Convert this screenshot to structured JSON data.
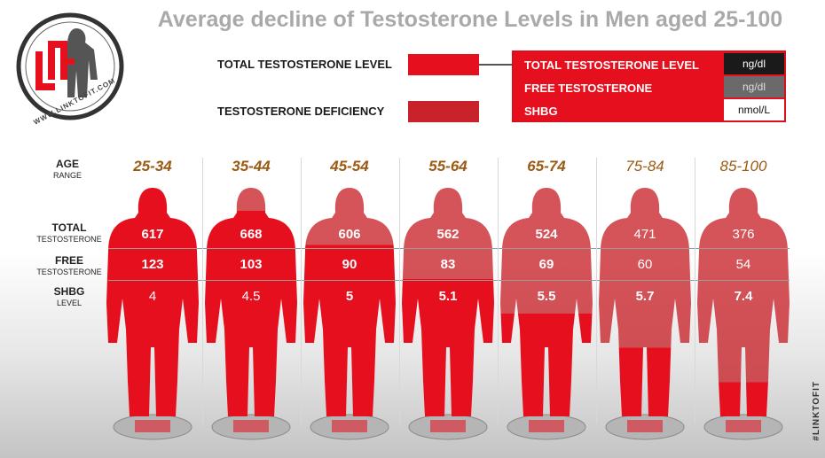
{
  "logo": {
    "text": "WWW.LINKTOFIT.COM"
  },
  "watermark": "#LINKTOFIT",
  "legend": {
    "total_label": "TOTAL TESTOSTERONE LEVEL",
    "deficiency_label": "TESTOSTERONE DEFICIENCY",
    "total_color": "#e60f1e",
    "deficiency_color": "#c8232a"
  },
  "units": [
    {
      "name": "TOTAL TESTOSTERONE LEVEL",
      "unit": "ng/dl",
      "unit_bg": "#1a1a1a",
      "unit_fg": "#ffffff"
    },
    {
      "name": "FREE TESTOSTERONE",
      "unit": "ng/dl",
      "unit_bg": "#6a6a6a",
      "unit_fg": "#dddddd"
    },
    {
      "name": "SHBG",
      "unit": "nmol/L",
      "unit_bg": "#ffffff",
      "unit_fg": "#111111"
    }
  ],
  "row_labels": {
    "age": {
      "big": "AGE",
      "small": "RANGE"
    },
    "total": {
      "big": "TOTAL",
      "small": "TESTOSTERONE"
    },
    "free": {
      "big": "FREE",
      "small": "TESTOSTERONE"
    },
    "shbg": {
      "big": "SHBG",
      "small": "LEVEL"
    }
  },
  "chart_data": {
    "type": "table",
    "title": "Average decline of Testosterone Levels in Men aged 25-100",
    "categories": [
      "25-34",
      "35-44",
      "45-54",
      "55-64",
      "65-74",
      "75-84",
      "85-100"
    ],
    "series": [
      {
        "name": "TOTAL TESTOSTERONE",
        "unit": "ng/dl",
        "values": [
          "617",
          "668",
          "606",
          "562",
          "524",
          "471",
          "376"
        ]
      },
      {
        "name": "FREE TESTOSTERONE",
        "unit": "ng/dl",
        "values": [
          "123",
          "103",
          "90",
          "83",
          "69",
          "60",
          "54"
        ]
      },
      {
        "name": "SHBG LEVEL",
        "unit": "nmol/L",
        "values": [
          "4",
          "4.5",
          "5",
          "5.1",
          "5.5",
          "5.7",
          "7.4"
        ]
      }
    ],
    "deficiency_fraction": [
      0,
      0.1,
      0.25,
      0.4,
      0.55,
      0.7,
      0.85
    ]
  }
}
